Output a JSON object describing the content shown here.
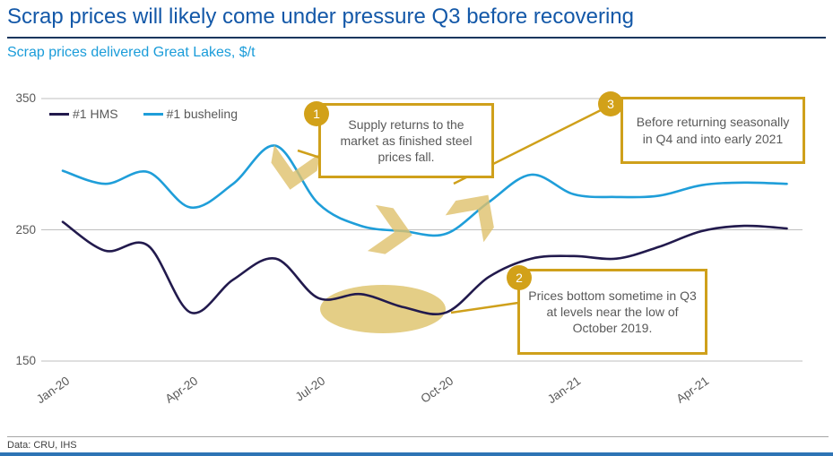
{
  "page": {
    "title": "Scrap prices will likely come under pressure Q3 before recovering",
    "subtitle": "Scrap prices delivered Great Lakes, $/t",
    "footer": "Data: CRU, IHS"
  },
  "colors": {
    "title_blue": "#1358A8",
    "subtitle_blue": "#1A9CD9",
    "hms_line": "#221A4D",
    "busheling_line": "#1F9ED9",
    "gold_accent": "#CFA01B",
    "gold_fill": "#DFC06C",
    "grid_gray": "#BFBFBF",
    "axis_text": "#595959",
    "bottom_bar_blue": "#2E74B5"
  },
  "legend": [
    {
      "label": "#1 HMS"
    },
    {
      "label": "#1 busheling"
    }
  ],
  "annotations": [
    {
      "number": "1",
      "text": "Supply returns to the market as finished steel prices fall."
    },
    {
      "number": "2",
      "text": "Prices bottom sometime in Q3 at levels near the low of October 2019."
    },
    {
      "number": "3",
      "text": "Before returning seasonally in Q4 and into early 2021"
    }
  ],
  "chart_data": {
    "type": "line",
    "title": "Scrap prices delivered Great Lakes, $/t",
    "xlabel": "",
    "ylabel": "$/t",
    "ylim": [
      150,
      350
    ],
    "grid": "horizontal",
    "legend_position": "top-left",
    "x": [
      "Jan-20",
      "Feb-20",
      "Mar-20",
      "Apr-20",
      "May-20",
      "Jun-20",
      "Jul-20",
      "Aug-20",
      "Sep-20",
      "Oct-20",
      "Nov-20",
      "Dec-20",
      "Jan-21",
      "Feb-21",
      "Mar-21",
      "Apr-21",
      "May-21",
      "Jun-21"
    ],
    "series": [
      {
        "name": "#1 HMS",
        "color": "#221A4D",
        "values": [
          256,
          234,
          238,
          187,
          212,
          228,
          198,
          201,
          191,
          187,
          214,
          228,
          230,
          228,
          237,
          249,
          253,
          251
        ]
      },
      {
        "name": "#1 busheling",
        "color": "#1F9ED9",
        "values": [
          295,
          285,
          294,
          267,
          285,
          314,
          270,
          253,
          249,
          247,
          271,
          292,
          277,
          275,
          276,
          284,
          286,
          285
        ]
      }
    ],
    "y_ticks": [
      350,
      250,
      150
    ],
    "x_ticks": [
      {
        "label": "Jan-20",
        "month_index": 0
      },
      {
        "label": "Apr-20",
        "month_index": 3
      },
      {
        "label": "Jul-20",
        "month_index": 6
      },
      {
        "label": "Oct-20",
        "month_index": 9
      },
      {
        "label": "Jan-21",
        "month_index": 12
      },
      {
        "label": "Apr-21",
        "month_index": 15
      }
    ]
  }
}
